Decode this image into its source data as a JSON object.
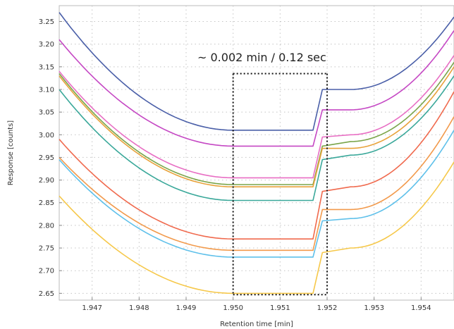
{
  "chart_data": {
    "type": "line",
    "xlabel": "Retention time [min]",
    "ylabel": "Response [counts]",
    "xlim": [
      1.9463,
      1.9547
    ],
    "ylim": [
      2.635,
      3.285
    ],
    "xticks": [
      1.947,
      1.948,
      1.949,
      1.95,
      1.951,
      1.952,
      1.953,
      1.954
    ],
    "xtick_labels": [
      "1.947",
      "1.948",
      "1.949",
      "1.950",
      "1.951",
      "1.952",
      "1.953",
      "1.954"
    ],
    "yticks": [
      2.65,
      2.7,
      2.75,
      2.8,
      2.85,
      2.9,
      2.95,
      3.0,
      3.05,
      3.1,
      3.15,
      3.2,
      3.25
    ],
    "ytick_labels": [
      "2.65",
      "2.70",
      "2.75",
      "2.80",
      "2.85",
      "2.90",
      "2.95",
      "3.00",
      "3.05",
      "3.10",
      "3.15",
      "3.20",
      "3.25"
    ],
    "grid": true,
    "annotation": {
      "text": "~ 0.002 min / 0.12 sec",
      "box_x": [
        1.95,
        1.952
      ],
      "box_y": [
        2.647,
        3.135
      ]
    },
    "series": [
      {
        "color": "#4a5fa8",
        "x": [
          1.9463,
          1.9495,
          1.95,
          1.9517,
          1.9519,
          1.9525,
          1.9547
        ],
        "y": [
          3.27,
          3.03,
          3.01,
          3.01,
          3.1,
          3.1,
          3.26
        ]
      },
      {
        "color": "#c548c4",
        "x": [
          1.9463,
          1.9495,
          1.95,
          1.9517,
          1.9519,
          1.9525,
          1.9547
        ],
        "y": [
          3.21,
          2.99,
          2.975,
          2.975,
          3.055,
          3.055,
          3.23
        ]
      },
      {
        "color": "#e86fc4",
        "x": [
          1.9463,
          1.9495,
          1.95,
          1.9517,
          1.9519,
          1.9525,
          1.9547
        ],
        "y": [
          3.14,
          2.925,
          2.905,
          2.905,
          2.995,
          3.0,
          3.175
        ]
      },
      {
        "color": "#7aa54a",
        "x": [
          1.9463,
          1.9495,
          1.95,
          1.9517,
          1.9519,
          1.9525,
          1.9547
        ],
        "y": [
          3.135,
          2.91,
          2.89,
          2.89,
          2.975,
          2.985,
          3.16
        ]
      },
      {
        "color": "#e8a23a",
        "x": [
          1.9463,
          1.9495,
          1.95,
          1.9517,
          1.9519,
          1.9525,
          1.9547
        ],
        "y": [
          3.13,
          2.905,
          2.885,
          2.885,
          2.97,
          2.97,
          3.15
        ]
      },
      {
        "color": "#3aa89a",
        "x": [
          1.9463,
          1.9495,
          1.95,
          1.9517,
          1.9519,
          1.9525,
          1.9547
        ],
        "y": [
          3.1,
          2.87,
          2.855,
          2.855,
          2.945,
          2.955,
          3.13
        ]
      },
      {
        "color": "#f06a4e",
        "x": [
          1.9463,
          1.9495,
          1.95,
          1.9517,
          1.9519,
          1.9525,
          1.9547
        ],
        "y": [
          2.99,
          2.79,
          2.77,
          2.77,
          2.875,
          2.885,
          3.095
        ]
      },
      {
        "color": "#f29a4c",
        "x": [
          1.9463,
          1.9495,
          1.95,
          1.9517,
          1.9519,
          1.9525,
          1.9547
        ],
        "y": [
          2.95,
          2.76,
          2.745,
          2.745,
          2.835,
          2.835,
          3.04
        ]
      },
      {
        "color": "#5ec0ea",
        "x": [
          1.9463,
          1.9495,
          1.95,
          1.9517,
          1.9519,
          1.9525,
          1.9547
        ],
        "y": [
          2.945,
          2.745,
          2.73,
          2.73,
          2.81,
          2.815,
          3.01
        ]
      },
      {
        "color": "#f6c84a",
        "x": [
          1.9463,
          1.9495,
          1.95,
          1.9517,
          1.9519,
          1.9525,
          1.9547
        ],
        "y": [
          2.865,
          2.665,
          2.65,
          2.65,
          2.74,
          2.75,
          2.94
        ]
      }
    ]
  }
}
